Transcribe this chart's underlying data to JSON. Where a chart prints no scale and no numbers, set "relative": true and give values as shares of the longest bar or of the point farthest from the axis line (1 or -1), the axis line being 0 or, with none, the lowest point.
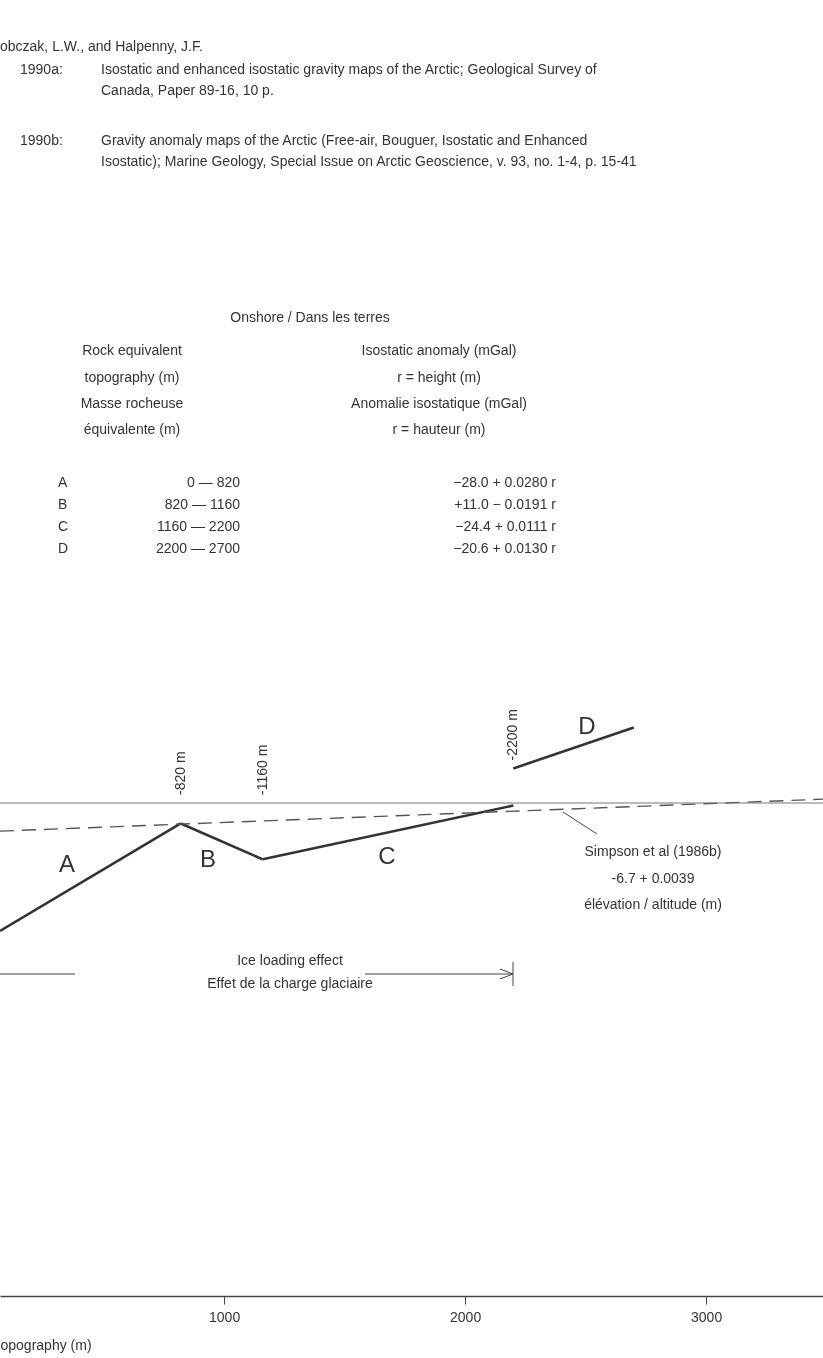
{
  "chart_data": {
    "type": "line",
    "relative": true,
    "xlabel": "opography (m)",
    "xlim": [
      70,
      3485
    ],
    "xticks": [
      1000,
      2000,
      3000
    ],
    "grid": false,
    "line_style": "solid",
    "marker": "none",
    "series": [
      {
        "name": "A",
        "color": "#333333",
        "x": [
          70,
          820
        ],
        "values": [
          -1.0,
          -0.16
        ]
      },
      {
        "name": "B",
        "color": "#333333",
        "x": [
          820,
          1160
        ],
        "values": [
          -0.16,
          -0.44
        ]
      },
      {
        "name": "C",
        "color": "#333333",
        "x": [
          1160,
          2200
        ],
        "values": [
          -0.44,
          -0.02
        ]
      },
      {
        "name": "D",
        "color": "#333333",
        "x": [
          2200,
          2700
        ],
        "values": [
          0.27,
          0.59
        ]
      },
      {
        "color": "#555555",
        "line_style": "dashed",
        "x": [
          70,
          3485
        ],
        "values": [
          -0.22,
          0.03
        ]
      }
    ],
    "ref_lines": [
      {
        "axis": "y",
        "value": 0,
        "color": "#777777"
      }
    ],
    "annotations": [
      "obczak, L.W., and Halpenny, J.F.",
      "1990a:",
      "Isostatic and enhanced isostatic gravity maps of the Arctic; Geological Survey of",
      "Canada, Paper 89-16, 10 p.",
      "1990b:",
      "Gravity anomaly maps of the Arctic (Free-air, Bouguer, Isostatic and Enhanced",
      "Isostatic); Marine Geology, Special Issue on Arctic Geoscience, v. 93, no. 1-4, p. 15-41",
      "Onshore / Dans les terres",
      "Rock equivalent",
      "topography (m)",
      "Masse rocheuse",
      "équivalente (m)",
      "Isostatic anomaly (mGal)",
      "r = height (m)",
      "Anomalie isostatique (mGal)",
      "r = hauteur (m)",
      "A",
      "0 — 820",
      "−28.0 + 0.0280 r",
      "B",
      "820 — 1160",
      "+11.0 − 0.0191 r",
      "C",
      "1160 — 2200",
      "−24.4 + 0.0111 r",
      "D",
      "2200 — 2700",
      "−20.6 + 0.0130 r",
      {
        "text": "-820 m",
        "x": 820,
        "y": 0
      },
      {
        "text": "-1160 m",
        "x": 1160,
        "y": 0
      },
      {
        "text": "-2200 m",
        "x": 2200,
        "y": 0.27
      },
      "Simpson et al (1986b)",
      "-6.7 + 0.0039",
      "élévation / altitude (m)",
      "Ice loading effect",
      "Effet de la charge glaciaire"
    ]
  }
}
